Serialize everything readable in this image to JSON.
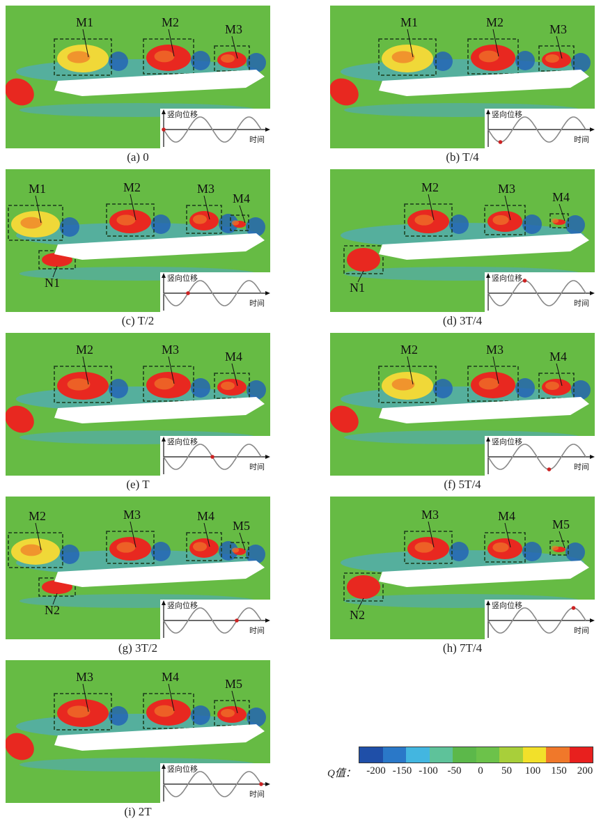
{
  "panels": [
    {
      "caption": "(a) 0",
      "boxes": [
        "M1",
        "M2",
        "M3"
      ],
      "labels_below": []
    },
    {
      "caption": "(b) T/4",
      "boxes": [
        "M1",
        "M2",
        "M3"
      ],
      "labels_below": []
    },
    {
      "caption": "(c) T/2",
      "boxes": [
        "M1",
        "M2",
        "M3",
        "M4"
      ],
      "labels_below": [
        "N1"
      ]
    },
    {
      "caption": "(d) 3T/4",
      "boxes": [
        "M2",
        "M3",
        "M4"
      ],
      "labels_below": [
        "N1"
      ]
    },
    {
      "caption": "(e) T",
      "boxes": [
        "M2",
        "M3",
        "M4"
      ],
      "labels_below": []
    },
    {
      "caption": "(f) 5T/4",
      "boxes": [
        "M2",
        "M3",
        "M4"
      ],
      "labels_below": []
    },
    {
      "caption": "(g) 3T/2",
      "boxes": [
        "M2",
        "M3",
        "M4",
        "M5"
      ],
      "labels_below": [
        "N2"
      ]
    },
    {
      "caption": "(h) 7T/4",
      "boxes": [
        "M3",
        "M4",
        "M5"
      ],
      "labels_below": [
        "N2"
      ]
    },
    {
      "caption": "(i) 2T",
      "boxes": [
        "M3",
        "M4",
        "M5"
      ],
      "labels_below": []
    }
  ],
  "inset": {
    "ylabel": "竖向位移",
    "xlabel": "时间"
  },
  "phase_marker_fraction": [
    0,
    0.25,
    0.5,
    0.75,
    1.0,
    1.25,
    1.5,
    1.75,
    2.0
  ],
  "colorbar": {
    "title": "Q值：",
    "ticks": [
      "-200",
      "-150",
      "-100",
      "-50",
      "0",
      "50",
      "100",
      "150",
      "200"
    ],
    "colors": [
      "#1f4fa8",
      "#2a78c8",
      "#43b6e0",
      "#5ec29a",
      "#5cb84a",
      "#6cc24a",
      "#a8cf3a",
      "#f2e02a",
      "#f0782a",
      "#e8201e"
    ]
  },
  "colors": {
    "background": "#66bb44",
    "deck": "#ffffff",
    "vortex_red": "#e82820",
    "vortex_yellow": "#f0d838",
    "vortex_blue": "#2060b8",
    "marker": "#cc2222"
  }
}
